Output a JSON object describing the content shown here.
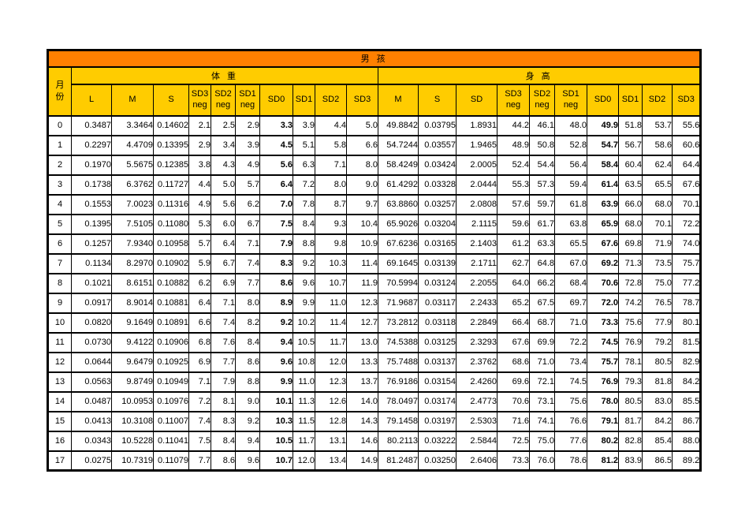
{
  "title": "男 孩",
  "month_header": {
    "lines": [
      "月",
      "份"
    ]
  },
  "colors": {
    "orange": "#ff8000",
    "yellow": "#ffcc00",
    "red": "#f20000",
    "green": "#008000"
  },
  "weight": {
    "label": "体 重",
    "columns": [
      {
        "id": "l",
        "lines": [
          "L"
        ]
      },
      {
        "id": "m",
        "lines": [
          "M"
        ]
      },
      {
        "id": "s",
        "lines": [
          "S"
        ]
      },
      {
        "id": "sd3-neg",
        "lines": [
          "SD3",
          "neg"
        ],
        "color": "red"
      },
      {
        "id": "sd2-neg",
        "lines": [
          "SD2",
          "neg"
        ]
      },
      {
        "id": "sd1-neg",
        "lines": [
          "SD1",
          "neg"
        ]
      },
      {
        "id": "sd0",
        "lines": [
          "SD0"
        ],
        "color": "green"
      },
      {
        "id": "sd1",
        "lines": [
          "SD1"
        ]
      },
      {
        "id": "sd2",
        "lines": [
          "SD2"
        ]
      },
      {
        "id": "sd3",
        "lines": [
          "SD3"
        ],
        "color": "red"
      }
    ]
  },
  "height": {
    "label": "身 高",
    "columns": [
      {
        "id": "m",
        "lines": [
          "M"
        ]
      },
      {
        "id": "s",
        "lines": [
          "S"
        ]
      },
      {
        "id": "sd",
        "lines": [
          "SD"
        ]
      },
      {
        "id": "sd3-neg",
        "lines": [
          "SD3",
          "neg"
        ],
        "color": "red"
      },
      {
        "id": "sd2-neg",
        "lines": [
          "SD2",
          "neg"
        ]
      },
      {
        "id": "sd1-neg",
        "lines": [
          "SD1",
          "neg"
        ]
      },
      {
        "id": "sd0",
        "lines": [
          "SD0"
        ],
        "color": "green"
      },
      {
        "id": "sd1",
        "lines": [
          "SD1"
        ]
      },
      {
        "id": "sd2",
        "lines": [
          "SD2"
        ]
      },
      {
        "id": "sd3",
        "lines": [
          "SD3"
        ],
        "color": "red"
      }
    ]
  },
  "rows": [
    {
      "month": "0",
      "weight": [
        "0.3487",
        "3.3464",
        "0.14602",
        "2.1",
        "2.5",
        "2.9",
        "3.3",
        "3.9",
        "4.4",
        "5.0"
      ],
      "height": [
        "49.8842",
        "0.03795",
        "1.8931",
        "44.2",
        "46.1",
        "48.0",
        "49.9",
        "51.8",
        "53.7",
        "55.6"
      ]
    },
    {
      "month": "1",
      "weight": [
        "0.2297",
        "4.4709",
        "0.13395",
        "2.9",
        "3.4",
        "3.9",
        "4.5",
        "5.1",
        "5.8",
        "6.6"
      ],
      "height": [
        "54.7244",
        "0.03557",
        "1.9465",
        "48.9",
        "50.8",
        "52.8",
        "54.7",
        "56.7",
        "58.6",
        "60.6"
      ]
    },
    {
      "month": "2",
      "weight": [
        "0.1970",
        "5.5675",
        "0.12385",
        "3.8",
        "4.3",
        "4.9",
        "5.6",
        "6.3",
        "7.1",
        "8.0"
      ],
      "height": [
        "58.4249",
        "0.03424",
        "2.0005",
        "52.4",
        "54.4",
        "56.4",
        "58.4",
        "60.4",
        "62.4",
        "64.4"
      ]
    },
    {
      "month": "3",
      "weight": [
        "0.1738",
        "6.3762",
        "0.11727",
        "4.4",
        "5.0",
        "5.7",
        "6.4",
        "7.2",
        "8.0",
        "9.0"
      ],
      "height": [
        "61.4292",
        "0.03328",
        "2.0444",
        "55.3",
        "57.3",
        "59.4",
        "61.4",
        "63.5",
        "65.5",
        "67.6"
      ]
    },
    {
      "month": "4",
      "weight": [
        "0.1553",
        "7.0023",
        "0.11316",
        "4.9",
        "5.6",
        "6.2",
        "7.0",
        "7.8",
        "8.7",
        "9.7"
      ],
      "height": [
        "63.8860",
        "0.03257",
        "2.0808",
        "57.6",
        "59.7",
        "61.8",
        "63.9",
        "66.0",
        "68.0",
        "70.1"
      ]
    },
    {
      "month": "5",
      "weight": [
        "0.1395",
        "7.5105",
        "0.11080",
        "5.3",
        "6.0",
        "6.7",
        "7.5",
        "8.4",
        "9.3",
        "10.4"
      ],
      "height": [
        "65.9026",
        "0.03204",
        "2.1115",
        "59.6",
        "61.7",
        "63.8",
        "65.9",
        "68.0",
        "70.1",
        "72.2"
      ]
    },
    {
      "month": "6",
      "weight": [
        "0.1257",
        "7.9340",
        "0.10958",
        "5.7",
        "6.4",
        "7.1",
        "7.9",
        "8.8",
        "9.8",
        "10.9"
      ],
      "height": [
        "67.6236",
        "0.03165",
        "2.1403",
        "61.2",
        "63.3",
        "65.5",
        "67.6",
        "69.8",
        "71.9",
        "74.0"
      ]
    },
    {
      "month": "7",
      "weight": [
        "0.1134",
        "8.2970",
        "0.10902",
        "5.9",
        "6.7",
        "7.4",
        "8.3",
        "9.2",
        "10.3",
        "11.4"
      ],
      "height": [
        "69.1645",
        "0.03139",
        "2.1711",
        "62.7",
        "64.8",
        "67.0",
        "69.2",
        "71.3",
        "73.5",
        "75.7"
      ]
    },
    {
      "month": "8",
      "weight": [
        "0.1021",
        "8.6151",
        "0.10882",
        "6.2",
        "6.9",
        "7.7",
        "8.6",
        "9.6",
        "10.7",
        "11.9"
      ],
      "height": [
        "70.5994",
        "0.03124",
        "2.2055",
        "64.0",
        "66.2",
        "68.4",
        "70.6",
        "72.8",
        "75.0",
        "77.2"
      ]
    },
    {
      "month": "9",
      "weight": [
        "0.0917",
        "8.9014",
        "0.10881",
        "6.4",
        "7.1",
        "8.0",
        "8.9",
        "9.9",
        "11.0",
        "12.3"
      ],
      "height": [
        "71.9687",
        "0.03117",
        "2.2433",
        "65.2",
        "67.5",
        "69.7",
        "72.0",
        "74.2",
        "76.5",
        "78.7"
      ]
    },
    {
      "month": "10",
      "weight": [
        "0.0820",
        "9.1649",
        "0.10891",
        "6.6",
        "7.4",
        "8.2",
        "9.2",
        "10.2",
        "11.4",
        "12.7"
      ],
      "height": [
        "73.2812",
        "0.03118",
        "2.2849",
        "66.4",
        "68.7",
        "71.0",
        "73.3",
        "75.6",
        "77.9",
        "80.1"
      ]
    },
    {
      "month": "11",
      "weight": [
        "0.0730",
        "9.4122",
        "0.10906",
        "6.8",
        "7.6",
        "8.4",
        "9.4",
        "10.5",
        "11.7",
        "13.0"
      ],
      "height": [
        "74.5388",
        "0.03125",
        "2.3293",
        "67.6",
        "69.9",
        "72.2",
        "74.5",
        "76.9",
        "79.2",
        "81.5"
      ]
    },
    {
      "month": "12",
      "weight": [
        "0.0644",
        "9.6479",
        "0.10925",
        "6.9",
        "7.7",
        "8.6",
        "9.6",
        "10.8",
        "12.0",
        "13.3"
      ],
      "height": [
        "75.7488",
        "0.03137",
        "2.3762",
        "68.6",
        "71.0",
        "73.4",
        "75.7",
        "78.1",
        "80.5",
        "82.9"
      ]
    },
    {
      "month": "13",
      "weight": [
        "0.0563",
        "9.8749",
        "0.10949",
        "7.1",
        "7.9",
        "8.8",
        "9.9",
        "11.0",
        "12.3",
        "13.7"
      ],
      "height": [
        "76.9186",
        "0.03154",
        "2.4260",
        "69.6",
        "72.1",
        "74.5",
        "76.9",
        "79.3",
        "81.8",
        "84.2"
      ]
    },
    {
      "month": "14",
      "weight": [
        "0.0487",
        "10.0953",
        "0.10976",
        "7.2",
        "8.1",
        "9.0",
        "10.1",
        "11.3",
        "12.6",
        "14.0"
      ],
      "height": [
        "78.0497",
        "0.03174",
        "2.4773",
        "70.6",
        "73.1",
        "75.6",
        "78.0",
        "80.5",
        "83.0",
        "85.5"
      ]
    },
    {
      "month": "15",
      "weight": [
        "0.0413",
        "10.3108",
        "0.11007",
        "7.4",
        "8.3",
        "9.2",
        "10.3",
        "11.5",
        "12.8",
        "14.3"
      ],
      "height": [
        "79.1458",
        "0.03197",
        "2.5303",
        "71.6",
        "74.1",
        "76.6",
        "79.1",
        "81.7",
        "84.2",
        "86.7"
      ]
    },
    {
      "month": "16",
      "weight": [
        "0.0343",
        "10.5228",
        "0.11041",
        "7.5",
        "8.4",
        "9.4",
        "10.5",
        "11.7",
        "13.1",
        "14.6"
      ],
      "height": [
        "80.2113",
        "0.03222",
        "2.5844",
        "72.5",
        "75.0",
        "77.6",
        "80.2",
        "82.8",
        "85.4",
        "88.0"
      ]
    },
    {
      "month": "17",
      "weight": [
        "0.0275",
        "10.7319",
        "0.11079",
        "7.7",
        "8.6",
        "9.6",
        "10.7",
        "12.0",
        "13.4",
        "14.9"
      ],
      "height": [
        "81.2487",
        "0.03250",
        "2.6406",
        "73.3",
        "76.0",
        "78.6",
        "81.2",
        "83.9",
        "86.5",
        "89.2"
      ]
    }
  ]
}
